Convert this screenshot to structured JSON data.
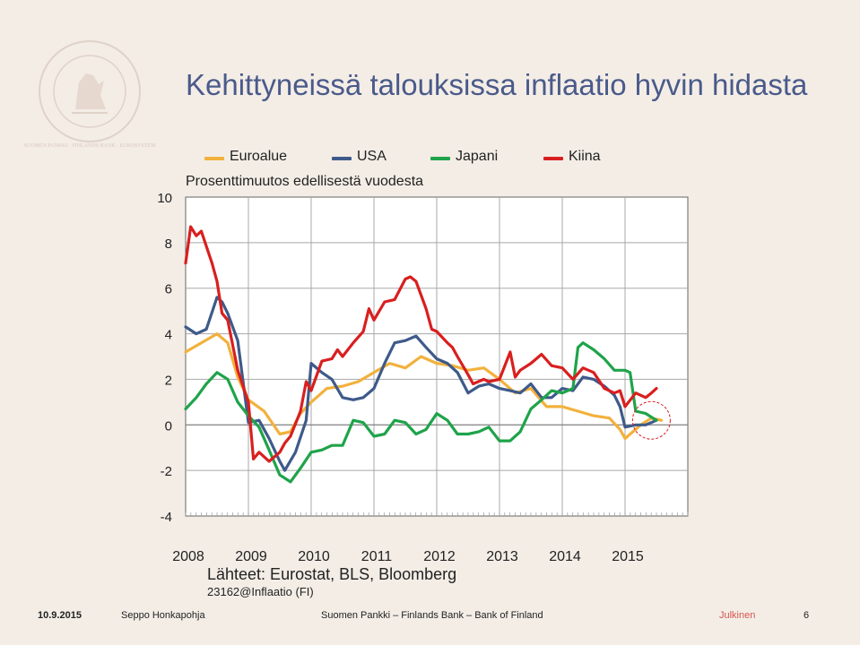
{
  "title": "Kehittyneissä talouksissa inflaatio hyvin hidasta",
  "logo_text": "SUOMEN PANKKI · FINLANDS BANK · EUROSYSTEM",
  "subtitle": "Prosenttimuutos edellisestä vuodesta",
  "source": "Lähteet: Eurostat, BLS, Bloomberg",
  "chart_code": "23162@Inflaatio (FI)",
  "footer": {
    "date": "10.9.2015",
    "author": "Seppo Honkapohja",
    "organization": "Suomen Pankki – Finlands Bank – Bank of Finland",
    "classification": "Julkinen",
    "page": "6"
  },
  "colors": {
    "euro": "#f2b13c",
    "usa": "#3e5a8a",
    "japan": "#1fa34a",
    "china": "#d91f1f",
    "title": "#4a5a8a",
    "classification": "#d9534f"
  },
  "chart_data": {
    "type": "line",
    "xlim": [
      2008.0,
      2016.0
    ],
    "ylim": [
      -4,
      10
    ],
    "yticks": [
      10,
      8,
      6,
      4,
      2,
      0,
      -2,
      -4
    ],
    "xtick_labels": [
      "2008",
      "2009",
      "2010",
      "2011",
      "2012",
      "2013",
      "2014",
      "2015"
    ],
    "grid": true,
    "legend_position": "top",
    "annotation": "dashed red circle around the latest observations",
    "series": [
      {
        "name": "Euroalue",
        "color": "#f2b13c",
        "points": [
          [
            2008.0,
            3.2
          ],
          [
            2008.25,
            3.6
          ],
          [
            2008.5,
            4.0
          ],
          [
            2008.67,
            3.6
          ],
          [
            2008.83,
            2.1
          ],
          [
            2009.0,
            1.1
          ],
          [
            2009.25,
            0.6
          ],
          [
            2009.5,
            -0.4
          ],
          [
            2009.67,
            -0.3
          ],
          [
            2009.83,
            0.5
          ],
          [
            2010.0,
            1.0
          ],
          [
            2010.25,
            1.6
          ],
          [
            2010.5,
            1.7
          ],
          [
            2010.75,
            1.9
          ],
          [
            2011.0,
            2.3
          ],
          [
            2011.25,
            2.7
          ],
          [
            2011.5,
            2.5
          ],
          [
            2011.75,
            3.0
          ],
          [
            2012.0,
            2.7
          ],
          [
            2012.25,
            2.6
          ],
          [
            2012.5,
            2.4
          ],
          [
            2012.75,
            2.5
          ],
          [
            2013.0,
            2.0
          ],
          [
            2013.25,
            1.4
          ],
          [
            2013.5,
            1.6
          ],
          [
            2013.75,
            0.8
          ],
          [
            2014.0,
            0.8
          ],
          [
            2014.25,
            0.6
          ],
          [
            2014.5,
            0.4
          ],
          [
            2014.75,
            0.3
          ],
          [
            2014.92,
            -0.2
          ],
          [
            2015.0,
            -0.6
          ],
          [
            2015.25,
            0.0
          ],
          [
            2015.42,
            0.3
          ],
          [
            2015.58,
            0.2
          ]
        ]
      },
      {
        "name": "USA",
        "color": "#3e5a8a",
        "points": [
          [
            2008.0,
            4.3
          ],
          [
            2008.17,
            4.0
          ],
          [
            2008.33,
            4.2
          ],
          [
            2008.5,
            5.6
          ],
          [
            2008.58,
            5.4
          ],
          [
            2008.67,
            4.9
          ],
          [
            2008.83,
            3.7
          ],
          [
            2009.0,
            0.1
          ],
          [
            2009.17,
            0.2
          ],
          [
            2009.33,
            -0.6
          ],
          [
            2009.5,
            -1.6
          ],
          [
            2009.58,
            -2.0
          ],
          [
            2009.75,
            -1.2
          ],
          [
            2009.92,
            0.2
          ],
          [
            2010.0,
            2.7
          ],
          [
            2010.17,
            2.3
          ],
          [
            2010.33,
            2.0
          ],
          [
            2010.5,
            1.2
          ],
          [
            2010.67,
            1.1
          ],
          [
            2010.83,
            1.2
          ],
          [
            2011.0,
            1.6
          ],
          [
            2011.17,
            2.7
          ],
          [
            2011.33,
            3.6
          ],
          [
            2011.5,
            3.7
          ],
          [
            2011.67,
            3.9
          ],
          [
            2011.83,
            3.4
          ],
          [
            2012.0,
            2.9
          ],
          [
            2012.17,
            2.7
          ],
          [
            2012.33,
            2.3
          ],
          [
            2012.5,
            1.4
          ],
          [
            2012.67,
            1.7
          ],
          [
            2012.83,
            1.8
          ],
          [
            2013.0,
            1.6
          ],
          [
            2013.17,
            1.5
          ],
          [
            2013.33,
            1.4
          ],
          [
            2013.5,
            1.8
          ],
          [
            2013.67,
            1.2
          ],
          [
            2013.83,
            1.2
          ],
          [
            2014.0,
            1.6
          ],
          [
            2014.17,
            1.5
          ],
          [
            2014.33,
            2.1
          ],
          [
            2014.5,
            2.0
          ],
          [
            2014.67,
            1.7
          ],
          [
            2014.83,
            1.3
          ],
          [
            2014.92,
            0.8
          ],
          [
            2015.0,
            -0.1
          ],
          [
            2015.17,
            0.0
          ],
          [
            2015.33,
            0.0
          ],
          [
            2015.5,
            0.2
          ]
        ]
      },
      {
        "name": "Japani",
        "color": "#1fa34a",
        "points": [
          [
            2008.0,
            0.7
          ],
          [
            2008.17,
            1.2
          ],
          [
            2008.33,
            1.8
          ],
          [
            2008.5,
            2.3
          ],
          [
            2008.67,
            2.0
          ],
          [
            2008.83,
            1.0
          ],
          [
            2009.0,
            0.4
          ],
          [
            2009.17,
            -0.1
          ],
          [
            2009.33,
            -1.1
          ],
          [
            2009.5,
            -2.2
          ],
          [
            2009.67,
            -2.5
          ],
          [
            2009.83,
            -1.9
          ],
          [
            2010.0,
            -1.2
          ],
          [
            2010.17,
            -1.1
          ],
          [
            2010.33,
            -0.9
          ],
          [
            2010.5,
            -0.9
          ],
          [
            2010.67,
            0.2
          ],
          [
            2010.83,
            0.1
          ],
          [
            2011.0,
            -0.5
          ],
          [
            2011.17,
            -0.4
          ],
          [
            2011.33,
            0.2
          ],
          [
            2011.5,
            0.1
          ],
          [
            2011.67,
            -0.4
          ],
          [
            2011.83,
            -0.2
          ],
          [
            2012.0,
            0.5
          ],
          [
            2012.17,
            0.2
          ],
          [
            2012.33,
            -0.4
          ],
          [
            2012.5,
            -0.4
          ],
          [
            2012.67,
            -0.3
          ],
          [
            2012.83,
            -0.1
          ],
          [
            2013.0,
            -0.7
          ],
          [
            2013.17,
            -0.7
          ],
          [
            2013.33,
            -0.3
          ],
          [
            2013.5,
            0.7
          ],
          [
            2013.67,
            1.1
          ],
          [
            2013.83,
            1.5
          ],
          [
            2014.0,
            1.4
          ],
          [
            2014.17,
            1.6
          ],
          [
            2014.25,
            3.4
          ],
          [
            2014.33,
            3.6
          ],
          [
            2014.5,
            3.3
          ],
          [
            2014.67,
            2.9
          ],
          [
            2014.83,
            2.4
          ],
          [
            2014.92,
            2.4
          ],
          [
            2015.0,
            2.4
          ],
          [
            2015.08,
            2.3
          ],
          [
            2015.17,
            0.6
          ],
          [
            2015.33,
            0.5
          ],
          [
            2015.5,
            0.2
          ]
        ]
      },
      {
        "name": "Kiina",
        "color": "#d91f1f",
        "points": [
          [
            2008.0,
            7.1
          ],
          [
            2008.08,
            8.7
          ],
          [
            2008.17,
            8.3
          ],
          [
            2008.25,
            8.5
          ],
          [
            2008.42,
            7.1
          ],
          [
            2008.5,
            6.3
          ],
          [
            2008.58,
            4.9
          ],
          [
            2008.67,
            4.6
          ],
          [
            2008.83,
            2.4
          ],
          [
            2009.0,
            1.0
          ],
          [
            2009.08,
            -1.5
          ],
          [
            2009.17,
            -1.2
          ],
          [
            2009.25,
            -1.4
          ],
          [
            2009.33,
            -1.6
          ],
          [
            2009.5,
            -1.2
          ],
          [
            2009.58,
            -0.8
          ],
          [
            2009.67,
            -0.5
          ],
          [
            2009.83,
            0.6
          ],
          [
            2009.92,
            1.9
          ],
          [
            2010.0,
            1.5
          ],
          [
            2010.17,
            2.8
          ],
          [
            2010.33,
            2.9
          ],
          [
            2010.42,
            3.3
          ],
          [
            2010.5,
            3.0
          ],
          [
            2010.67,
            3.6
          ],
          [
            2010.83,
            4.1
          ],
          [
            2010.92,
            5.1
          ],
          [
            2011.0,
            4.6
          ],
          [
            2011.17,
            5.4
          ],
          [
            2011.33,
            5.5
          ],
          [
            2011.5,
            6.4
          ],
          [
            2011.58,
            6.5
          ],
          [
            2011.67,
            6.3
          ],
          [
            2011.83,
            5.1
          ],
          [
            2011.92,
            4.2
          ],
          [
            2012.0,
            4.1
          ],
          [
            2012.17,
            3.6
          ],
          [
            2012.25,
            3.4
          ],
          [
            2012.33,
            3.0
          ],
          [
            2012.5,
            2.2
          ],
          [
            2012.58,
            1.8
          ],
          [
            2012.75,
            2.0
          ],
          [
            2012.83,
            1.9
          ],
          [
            2013.0,
            2.0
          ],
          [
            2013.17,
            3.2
          ],
          [
            2013.25,
            2.1
          ],
          [
            2013.33,
            2.4
          ],
          [
            2013.5,
            2.7
          ],
          [
            2013.67,
            3.1
          ],
          [
            2013.83,
            2.6
          ],
          [
            2014.0,
            2.5
          ],
          [
            2014.17,
            2.0
          ],
          [
            2014.33,
            2.5
          ],
          [
            2014.5,
            2.3
          ],
          [
            2014.67,
            1.6
          ],
          [
            2014.83,
            1.4
          ],
          [
            2014.92,
            1.5
          ],
          [
            2015.0,
            0.8
          ],
          [
            2015.17,
            1.4
          ],
          [
            2015.33,
            1.2
          ],
          [
            2015.42,
            1.4
          ],
          [
            2015.5,
            1.6
          ]
        ]
      }
    ]
  }
}
